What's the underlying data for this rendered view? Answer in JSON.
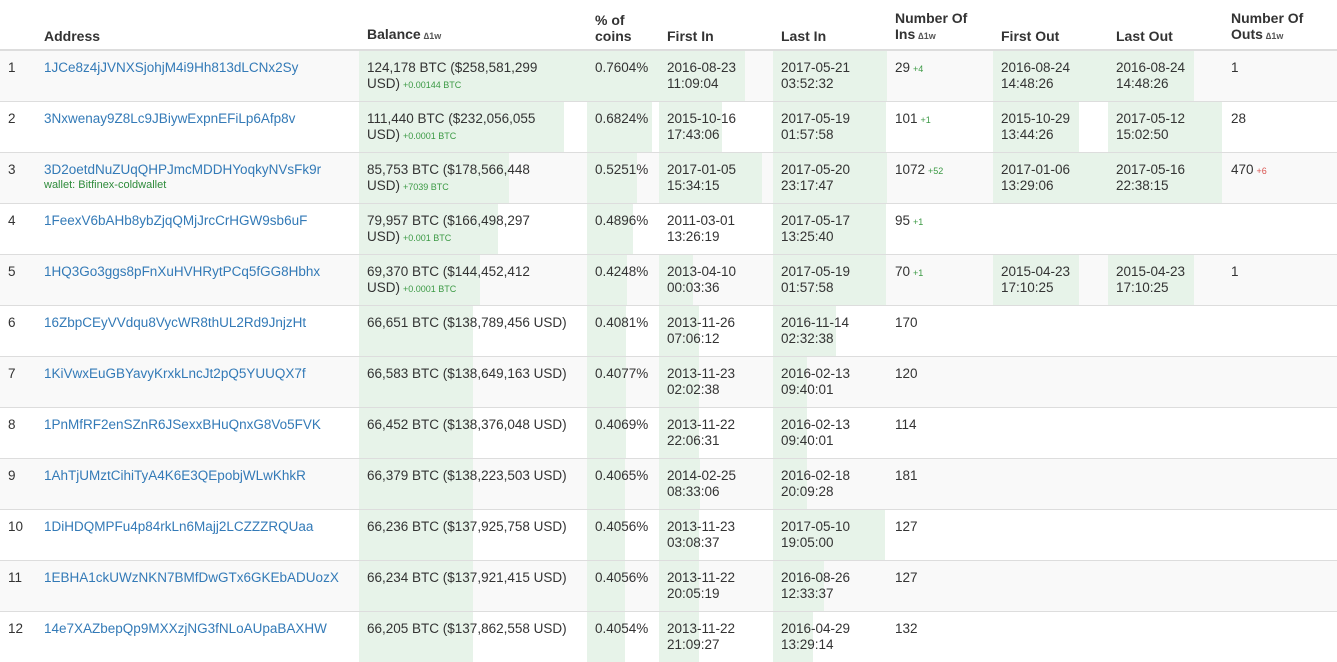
{
  "headers": {
    "address": "Address",
    "balance": "Balance",
    "balance_delta": "∆1w",
    "pct_line1": "% of",
    "pct_line2": "coins",
    "first_in": "First In",
    "last_in": "Last In",
    "num_ins_line1": "Number Of",
    "num_ins_line2": "Ins",
    "num_ins_delta": "∆1w",
    "first_out": "First Out",
    "last_out": "Last Out",
    "num_outs_line1": "Number Of",
    "num_outs_line2": "Outs",
    "num_outs_delta": "∆1w"
  },
  "rows": [
    {
      "rank": "1",
      "address": "1JCe8z4jJVNXSjohjM4i9Hh813dLCNx2Sy",
      "wallet": "",
      "balance": "124,178 BTC ($258,581,299 USD)",
      "balance_change": "+0.00144 BTC",
      "pct": "0.7604%",
      "first_in": "2016-08-23 11:09:04",
      "last_in": "2017-05-21 03:52:32",
      "ins": "29",
      "ins_change": "+4",
      "first_out": "2016-08-24 14:48:26",
      "last_out": "2016-08-24 14:48:26",
      "outs": "1",
      "outs_change": "",
      "bal_fill": 1.0,
      "fi_fill": 0.75,
      "li_fill": 1.0,
      "fo_fill": 1.0,
      "lo_fill": 0.75
    },
    {
      "rank": "2",
      "address": "3Nxwenay9Z8Lc9JBiywExpnEFiLp6Afp8v",
      "wallet": "",
      "balance": "111,440 BTC ($232,056,055 USD)",
      "balance_change": "+0.0001 BTC",
      "pct": "0.6824%",
      "first_in": "2015-10-16 17:43:06",
      "last_in": "2017-05-19 01:57:58",
      "ins": "101",
      "ins_change": "+1",
      "first_out": "2015-10-29 13:44:26",
      "last_out": "2017-05-12 15:02:50",
      "outs": "28",
      "outs_change": "",
      "bal_fill": 0.9,
      "fi_fill": 0.55,
      "li_fill": 0.99,
      "fo_fill": 0.75,
      "lo_fill": 0.99
    },
    {
      "rank": "3",
      "address": "3D2oetdNuZUqQHPJmcMDDHYoqkyNVsFk9r",
      "wallet": "wallet: Bitfinex-coldwallet",
      "balance": "85,753 BTC ($178,566,448 USD)",
      "balance_change": "+7039 BTC",
      "pct": "0.5251%",
      "first_in": "2017-01-05 15:34:15",
      "last_in": "2017-05-20 23:17:47",
      "ins": "1072",
      "ins_change": "+52",
      "first_out": "2017-01-06 13:29:06",
      "last_out": "2017-05-16 22:38:15",
      "outs": "470",
      "outs_change": "+6",
      "bal_fill": 0.66,
      "fi_fill": 0.9,
      "li_fill": 1.0,
      "fo_fill": 1.0,
      "lo_fill": 0.99
    },
    {
      "rank": "4",
      "address": "1FeexV6bAHb8ybZjqQMjJrcCrHGW9sb6uF",
      "wallet": "",
      "balance": "79,957 BTC ($166,498,297 USD)",
      "balance_change": "+0.001 BTC",
      "pct": "0.4896%",
      "first_in": "2011-03-01 13:26:19",
      "last_in": "2017-05-17 13:25:40",
      "ins": "95",
      "ins_change": "+1",
      "first_out": "",
      "last_out": "",
      "outs": "",
      "outs_change": "",
      "bal_fill": 0.61,
      "fi_fill": 0.0,
      "li_fill": 0.99,
      "fo_fill": 0,
      "lo_fill": 0
    },
    {
      "rank": "5",
      "address": "1HQ3Go3ggs8pFnXuHVHRytPCq5fGG8Hbhx",
      "wallet": "",
      "balance": "69,370 BTC ($144,452,412 USD)",
      "balance_change": "+0.0001 BTC",
      "pct": "0.4248%",
      "first_in": "2013-04-10 00:03:36",
      "last_in": "2017-05-19 01:57:58",
      "ins": "70",
      "ins_change": "+1",
      "first_out": "2015-04-23 17:10:25",
      "last_out": "2015-04-23 17:10:25",
      "outs": "1",
      "outs_change": "",
      "bal_fill": 0.53,
      "fi_fill": 0.3,
      "li_fill": 0.99,
      "fo_fill": 0.75,
      "lo_fill": 0.75
    },
    {
      "rank": "6",
      "address": "16ZbpCEyVVdqu8VycWR8thUL2Rd9JnjzHt",
      "wallet": "",
      "balance": "66,651 BTC ($138,789,456 USD)",
      "balance_change": "",
      "pct": "0.4081%",
      "first_in": "2013-11-26 07:06:12",
      "last_in": "2016-11-14 02:32:38",
      "ins": "170",
      "ins_change": "",
      "first_out": "",
      "last_out": "",
      "outs": "",
      "outs_change": "",
      "bal_fill": 0.5,
      "fi_fill": 0.35,
      "li_fill": 0.55,
      "fo_fill": 0,
      "lo_fill": 0
    },
    {
      "rank": "7",
      "address": "1KiVwxEuGBYavyKrxkLncJt2pQ5YUUQX7f",
      "wallet": "",
      "balance": "66,583 BTC ($138,649,163 USD)",
      "balance_change": "",
      "pct": "0.4077%",
      "first_in": "2013-11-23 02:02:38",
      "last_in": "2016-02-13 09:40:01",
      "ins": "120",
      "ins_change": "",
      "first_out": "",
      "last_out": "",
      "outs": "",
      "outs_change": "",
      "bal_fill": 0.5,
      "fi_fill": 0.35,
      "li_fill": 0.3,
      "fo_fill": 0,
      "lo_fill": 0
    },
    {
      "rank": "8",
      "address": "1PnMfRF2enSZnR6JSexxBHuQnxG8Vo5FVK",
      "wallet": "",
      "balance": "66,452 BTC ($138,376,048 USD)",
      "balance_change": "",
      "pct": "0.4069%",
      "first_in": "2013-11-22 22:06:31",
      "last_in": "2016-02-13 09:40:01",
      "ins": "114",
      "ins_change": "",
      "first_out": "",
      "last_out": "",
      "outs": "",
      "outs_change": "",
      "bal_fill": 0.5,
      "fi_fill": 0.35,
      "li_fill": 0.3,
      "fo_fill": 0,
      "lo_fill": 0
    },
    {
      "rank": "9",
      "address": "1AhTjUMztCihiTyA4K6E3QEpobjWLwKhkR",
      "wallet": "",
      "balance": "66,379 BTC ($138,223,503 USD)",
      "balance_change": "",
      "pct": "0.4065%",
      "first_in": "2014-02-25 08:33:06",
      "last_in": "2016-02-18 20:09:28",
      "ins": "181",
      "ins_change": "",
      "first_out": "",
      "last_out": "",
      "outs": "",
      "outs_change": "",
      "bal_fill": 0.5,
      "fi_fill": 0.36,
      "li_fill": 0.3,
      "fo_fill": 0,
      "lo_fill": 0
    },
    {
      "rank": "10",
      "address": "1DiHDQMPFu4p84rkLn6Majj2LCZZZRQUaa",
      "wallet": "",
      "balance": "66,236 BTC ($137,925,758 USD)",
      "balance_change": "",
      "pct": "0.4056%",
      "first_in": "2013-11-23 03:08:37",
      "last_in": "2017-05-10 19:05:00",
      "ins": "127",
      "ins_change": "",
      "first_out": "",
      "last_out": "",
      "outs": "",
      "outs_change": "",
      "bal_fill": 0.5,
      "fi_fill": 0.35,
      "li_fill": 0.98,
      "fo_fill": 0,
      "lo_fill": 0
    },
    {
      "rank": "11",
      "address": "1EBHA1ckUWzNKN7BMfDwGTx6GKEbADUozX",
      "wallet": "",
      "balance": "66,234 BTC ($137,921,415 USD)",
      "balance_change": "",
      "pct": "0.4056%",
      "first_in": "2013-11-22 20:05:19",
      "last_in": "2016-08-26 12:33:37",
      "ins": "127",
      "ins_change": "",
      "first_out": "",
      "last_out": "",
      "outs": "",
      "outs_change": "",
      "bal_fill": 0.5,
      "fi_fill": 0.35,
      "li_fill": 0.45,
      "fo_fill": 0,
      "lo_fill": 0
    },
    {
      "rank": "12",
      "address": "14e7XAZbepQp9MXXzjNG3fNLoAUpaBAXHW",
      "wallet": "",
      "balance": "66,205 BTC ($137,862,558 USD)",
      "balance_change": "",
      "pct": "0.4054%",
      "first_in": "2013-11-22 21:09:27",
      "last_in": "2016-04-29 13:29:14",
      "ins": "132",
      "ins_change": "",
      "first_out": "",
      "last_out": "",
      "outs": "",
      "outs_change": "",
      "bal_fill": 0.5,
      "fi_fill": 0.35,
      "li_fill": 0.35,
      "fo_fill": 0,
      "lo_fill": 0
    }
  ]
}
